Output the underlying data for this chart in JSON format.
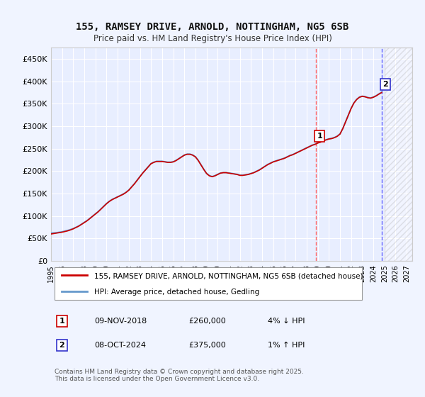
{
  "title": "155, RAMSEY DRIVE, ARNOLD, NOTTINGHAM, NG5 6SB",
  "subtitle": "Price paid vs. HM Land Registry's House Price Index (HPI)",
  "ylabel": "",
  "ylim": [
    0,
    475000
  ],
  "yticks": [
    0,
    50000,
    100000,
    150000,
    200000,
    250000,
    300000,
    350000,
    400000,
    450000
  ],
  "ytick_labels": [
    "£0",
    "£50K",
    "£100K",
    "£150K",
    "£200K",
    "£250K",
    "£300K",
    "£350K",
    "£400K",
    "£450K"
  ],
  "xlim_start": 1995.0,
  "xlim_end": 2027.5,
  "xticks": [
    1995,
    1996,
    1997,
    1998,
    1999,
    2000,
    2001,
    2002,
    2003,
    2004,
    2005,
    2006,
    2007,
    2008,
    2009,
    2010,
    2011,
    2012,
    2013,
    2014,
    2015,
    2016,
    2017,
    2018,
    2019,
    2020,
    2021,
    2022,
    2023,
    2024,
    2025,
    2026,
    2027
  ],
  "background_color": "#f0f4ff",
  "plot_bg_color": "#e8eeff",
  "grid_color": "#ffffff",
  "line_color_hpi": "#6699cc",
  "line_color_price": "#cc0000",
  "marker1_year": 2018.86,
  "marker1_value": 260000,
  "marker2_year": 2024.77,
  "marker2_value": 375000,
  "marker1_label": "1",
  "marker2_label": "2",
  "legend_line1": "155, RAMSEY DRIVE, ARNOLD, NOTTINGHAM, NG5 6SB (detached house)",
  "legend_line2": "HPI: Average price, detached house, Gedling",
  "table_row1": [
    "1",
    "09-NOV-2018",
    "£260,000",
    "4% ↓ HPI"
  ],
  "table_row2": [
    "2",
    "08-OCT-2024",
    "£375,000",
    "1% ↑ HPI"
  ],
  "footer": "Contains HM Land Registry data © Crown copyright and database right 2025.\nThis data is licensed under the Open Government Licence v3.0.",
  "vline1_color": "#ff6666",
  "vline2_color": "#6666ff",
  "hpi_data_x": [
    1995.0,
    1995.25,
    1995.5,
    1995.75,
    1996.0,
    1996.25,
    1996.5,
    1996.75,
    1997.0,
    1997.25,
    1997.5,
    1997.75,
    1998.0,
    1998.25,
    1998.5,
    1998.75,
    1999.0,
    1999.25,
    1999.5,
    1999.75,
    2000.0,
    2000.25,
    2000.5,
    2000.75,
    2001.0,
    2001.25,
    2001.5,
    2001.75,
    2002.0,
    2002.25,
    2002.5,
    2002.75,
    2003.0,
    2003.25,
    2003.5,
    2003.75,
    2004.0,
    2004.25,
    2004.5,
    2004.75,
    2005.0,
    2005.25,
    2005.5,
    2005.75,
    2006.0,
    2006.25,
    2006.5,
    2006.75,
    2007.0,
    2007.25,
    2007.5,
    2007.75,
    2008.0,
    2008.25,
    2008.5,
    2008.75,
    2009.0,
    2009.25,
    2009.5,
    2009.75,
    2010.0,
    2010.25,
    2010.5,
    2010.75,
    2011.0,
    2011.25,
    2011.5,
    2011.75,
    2012.0,
    2012.25,
    2012.5,
    2012.75,
    2013.0,
    2013.25,
    2013.5,
    2013.75,
    2014.0,
    2014.25,
    2014.5,
    2014.75,
    2015.0,
    2015.25,
    2015.5,
    2015.75,
    2016.0,
    2016.25,
    2016.5,
    2016.75,
    2017.0,
    2017.25,
    2017.5,
    2017.75,
    2018.0,
    2018.25,
    2018.5,
    2018.75,
    2019.0,
    2019.25,
    2019.5,
    2019.75,
    2020.0,
    2020.25,
    2020.5,
    2020.75,
    2021.0,
    2021.25,
    2021.5,
    2021.75,
    2022.0,
    2022.25,
    2022.5,
    2022.75,
    2023.0,
    2023.25,
    2023.5,
    2023.75,
    2024.0,
    2024.25,
    2024.5,
    2024.75
  ],
  "hpi_data_y": [
    62000,
    62500,
    63000,
    64000,
    65000,
    66500,
    68000,
    70000,
    72000,
    75000,
    78000,
    82000,
    86000,
    90000,
    95000,
    100000,
    105000,
    110000,
    116000,
    122000,
    128000,
    133000,
    137000,
    140000,
    143000,
    146000,
    149000,
    153000,
    158000,
    165000,
    172000,
    180000,
    188000,
    196000,
    203000,
    210000,
    217000,
    220000,
    222000,
    222000,
    222000,
    221000,
    220000,
    220000,
    221000,
    224000,
    228000,
    232000,
    236000,
    238000,
    238000,
    236000,
    232000,
    224000,
    214000,
    204000,
    195000,
    190000,
    188000,
    190000,
    193000,
    196000,
    197000,
    197000,
    196000,
    195000,
    194000,
    193000,
    191000,
    191000,
    192000,
    193000,
    195000,
    197000,
    200000,
    203000,
    207000,
    211000,
    215000,
    218000,
    221000,
    223000,
    225000,
    227000,
    229000,
    232000,
    235000,
    237000,
    240000,
    243000,
    246000,
    249000,
    252000,
    255000,
    258000,
    260000,
    263000,
    265000,
    268000,
    270000,
    272000,
    273000,
    275000,
    278000,
    283000,
    295000,
    310000,
    325000,
    340000,
    352000,
    360000,
    365000,
    367000,
    366000,
    364000,
    363000,
    365000,
    368000,
    372000,
    376000
  ],
  "price_data_x": [
    1995.0,
    1995.25,
    1995.5,
    1995.75,
    1996.0,
    1996.25,
    1996.5,
    1996.75,
    1997.0,
    1997.25,
    1997.5,
    1997.75,
    1998.0,
    1998.25,
    1998.5,
    1998.75,
    1999.0,
    1999.25,
    1999.5,
    1999.75,
    2000.0,
    2000.25,
    2000.5,
    2000.75,
    2001.0,
    2001.25,
    2001.5,
    2001.75,
    2002.0,
    2002.25,
    2002.5,
    2002.75,
    2003.0,
    2003.25,
    2003.5,
    2003.75,
    2004.0,
    2004.25,
    2004.5,
    2004.75,
    2005.0,
    2005.25,
    2005.5,
    2005.75,
    2006.0,
    2006.25,
    2006.5,
    2006.75,
    2007.0,
    2007.25,
    2007.5,
    2007.75,
    2008.0,
    2008.25,
    2008.5,
    2008.75,
    2009.0,
    2009.25,
    2009.5,
    2009.75,
    2010.0,
    2010.25,
    2010.5,
    2010.75,
    2011.0,
    2011.25,
    2011.5,
    2011.75,
    2012.0,
    2012.25,
    2012.5,
    2012.75,
    2013.0,
    2013.25,
    2013.5,
    2013.75,
    2014.0,
    2014.25,
    2014.5,
    2014.75,
    2015.0,
    2015.25,
    2015.5,
    2015.75,
    2016.0,
    2016.25,
    2016.5,
    2016.75,
    2017.0,
    2017.25,
    2017.5,
    2017.75,
    2018.0,
    2018.25,
    2018.5,
    2018.75,
    2019.0,
    2019.25,
    2019.5,
    2019.75,
    2020.0,
    2020.25,
    2020.5,
    2020.75,
    2021.0,
    2021.25,
    2021.5,
    2021.75,
    2022.0,
    2022.25,
    2022.5,
    2022.75,
    2023.0,
    2023.25,
    2023.5,
    2023.75,
    2024.0,
    2024.25,
    2024.5,
    2024.75
  ],
  "price_data_y": [
    60000,
    61000,
    62000,
    63000,
    64000,
    65500,
    67000,
    69000,
    71500,
    74500,
    77500,
    81500,
    85500,
    89500,
    94500,
    99500,
    104500,
    109500,
    115500,
    121500,
    127500,
    132500,
    136500,
    139500,
    142500,
    145500,
    148500,
    152500,
    157500,
    164500,
    171500,
    179500,
    187500,
    195500,
    202500,
    209500,
    216500,
    219500,
    221500,
    221500,
    221500,
    220500,
    219500,
    219500,
    220500,
    223500,
    227500,
    231500,
    235500,
    237500,
    237500,
    235500,
    231500,
    223500,
    213500,
    203500,
    194500,
    189500,
    187500,
    189500,
    192500,
    195500,
    196500,
    196500,
    195500,
    194500,
    193500,
    192500,
    190500,
    190500,
    191500,
    192500,
    194500,
    196500,
    199500,
    202500,
    206500,
    210500,
    214500,
    217500,
    220500,
    222500,
    224500,
    226500,
    228500,
    231500,
    234500,
    236500,
    239500,
    242500,
    245500,
    248500,
    251500,
    254500,
    257500,
    259500,
    262500,
    264500,
    267500,
    269500,
    271500,
    272500,
    274500,
    277500,
    282500,
    294500,
    309500,
    324500,
    339500,
    351500,
    359500,
    364500,
    366500,
    365500,
    363500,
    362500,
    364500,
    367500,
    371500,
    375000
  ]
}
